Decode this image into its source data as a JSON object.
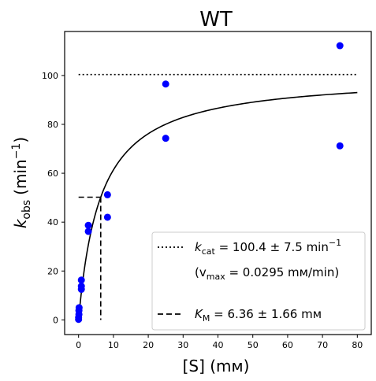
{
  "chart_data": {
    "type": "scatter",
    "title": "WT",
    "xlabel": {
      "text": "[S] (mм)"
    },
    "ylabel": {
      "base": "k",
      "sub": "obs",
      "rest": "(min",
      "sup": "−1",
      "close": ")"
    },
    "xlim": [
      -4,
      84
    ],
    "ylim": [
      -6,
      118
    ],
    "xticks": [
      0,
      10,
      20,
      30,
      40,
      50,
      60,
      70,
      80
    ],
    "yticks": [
      0,
      20,
      40,
      60,
      80,
      100
    ],
    "grid": false,
    "legend_position": "lower-right",
    "colors": {
      "points": "#0000ff",
      "fit": "#000000",
      "reference_lines": "#000000"
    },
    "points": [
      {
        "x": 0.0,
        "y": 0.2
      },
      {
        "x": 0.0,
        "y": 1.0
      },
      {
        "x": 0.1,
        "y": 2.2
      },
      {
        "x": 0.1,
        "y": 3.8
      },
      {
        "x": 0.15,
        "y": 5.0
      },
      {
        "x": 0.8,
        "y": 12.5
      },
      {
        "x": 0.8,
        "y": 13.8
      },
      {
        "x": 0.8,
        "y": 16.3
      },
      {
        "x": 2.8,
        "y": 36.2
      },
      {
        "x": 2.8,
        "y": 38.7
      },
      {
        "x": 8.3,
        "y": 42.0
      },
      {
        "x": 8.3,
        "y": 51.2
      },
      {
        "x": 25.0,
        "y": 74.3
      },
      {
        "x": 25.0,
        "y": 96.5
      },
      {
        "x": 75.0,
        "y": 71.2
      },
      {
        "x": 75.0,
        "y": 112.2
      }
    ],
    "fit": {
      "model": "michaelis-menten",
      "kcat": 100.4,
      "km": 6.36,
      "x_range": [
        0,
        80
      ]
    },
    "kcat_line": {
      "y": 100.4,
      "x_range": [
        0,
        80
      ]
    },
    "km_lines": {
      "x": 6.36,
      "y": 50.2,
      "x_start": 0
    },
    "legend": [
      {
        "style": "dotted",
        "label": {
          "pre": "k",
          "sub": "cat",
          "post": " = 100.4 ± 7.5 min",
          "sup": "−1"
        }
      },
      {
        "style": "none",
        "label": {
          "pre": "(v",
          "sub": "max",
          "post": " = 0.0295 mм/min)",
          "sup": ""
        }
      },
      {
        "style": "none",
        "label": {
          "pre": "",
          "sub": "",
          "post": "",
          "sup": ""
        }
      },
      {
        "style": "dashed",
        "label": {
          "pre": "K",
          "sub": "M",
          "post": " = 6.36 ± 1.66 mм",
          "sup": ""
        }
      }
    ]
  }
}
